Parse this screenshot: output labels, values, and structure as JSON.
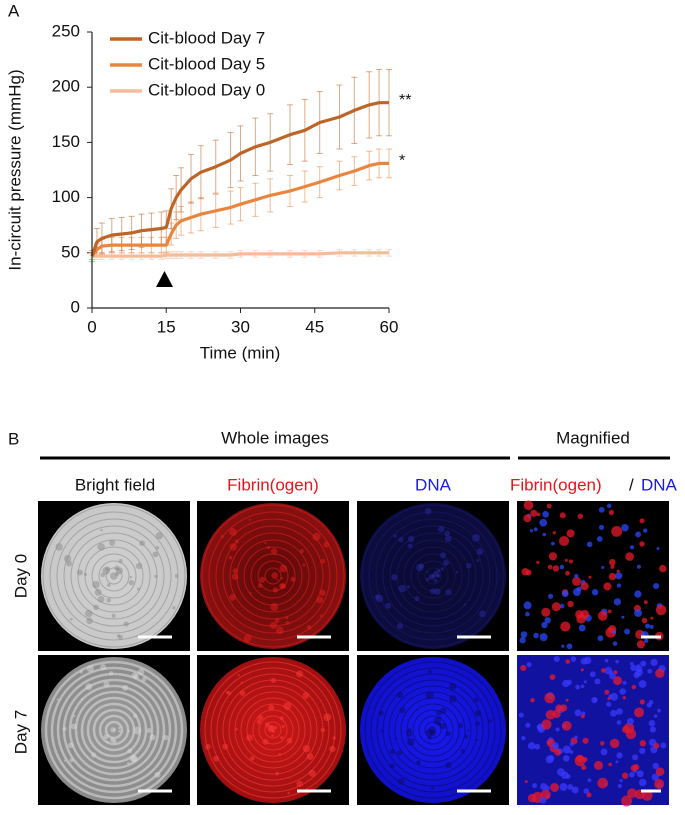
{
  "chart_data": {
    "type": "line",
    "panel_label": "A",
    "x_label": "Time (min)",
    "y_label": "In-circuit pressure (mmHg)",
    "x": [
      0,
      1,
      2,
      4,
      6,
      8,
      10,
      12,
      14,
      15,
      16,
      17,
      18,
      20,
      22,
      25,
      28,
      30,
      33,
      36,
      40,
      43,
      46,
      50,
      53,
      56,
      58,
      60
    ],
    "series": [
      {
        "name": "Cit-blood Day 7",
        "color": "#bd6428",
        "values": [
          47,
          60,
          63,
          66,
          67,
          68,
          70,
          71,
          72,
          73,
          90,
          100,
          107,
          117,
          123,
          128,
          134,
          140,
          146,
          150,
          157,
          161,
          168,
          173,
          179,
          184,
          186,
          186
        ],
        "errors": [
          5,
          12,
          14,
          15,
          15,
          15,
          15,
          15,
          15,
          15,
          18,
          20,
          20,
          22,
          24,
          24,
          25,
          25,
          26,
          26,
          27,
          28,
          28,
          29,
          30,
          30,
          30,
          30
        ]
      },
      {
        "name": "Cit-blood Day 5",
        "color": "#e9853f",
        "values": [
          47,
          53,
          56,
          57,
          57,
          57,
          57,
          57,
          57,
          57,
          67,
          75,
          79,
          82,
          85,
          88,
          91,
          94,
          98,
          102,
          106,
          110,
          114,
          120,
          124,
          129,
          131,
          131
        ],
        "errors": [
          3,
          5,
          6,
          7,
          7,
          7,
          7,
          7,
          7,
          7,
          10,
          12,
          13,
          14,
          15,
          15,
          15,
          15,
          15,
          15,
          14,
          14,
          14,
          13,
          13,
          13,
          13,
          13
        ]
      },
      {
        "name": "Cit-blood Day 0",
        "color": "#f5bb9a",
        "values": [
          47,
          47,
          47,
          47,
          47,
          47,
          47,
          47,
          47,
          48,
          48,
          48,
          48,
          48,
          48,
          48,
          48,
          49,
          49,
          49,
          49,
          49,
          49,
          50,
          50,
          50,
          50,
          50
        ],
        "errors": [
          3,
          3,
          3,
          3,
          3,
          3,
          3,
          3,
          3,
          3,
          3,
          3,
          3,
          3,
          3,
          3,
          3,
          3,
          3,
          3,
          3,
          3,
          3,
          3,
          3,
          3,
          3,
          3
        ]
      }
    ],
    "annotations": [
      "**",
      "*"
    ],
    "xlim": [
      0,
      60
    ],
    "ylim": [
      0,
      250
    ],
    "xticks": [
      0,
      15,
      30,
      45,
      60
    ],
    "yticks": [
      0,
      50,
      100,
      150,
      200,
      250
    ],
    "grid": false,
    "legend": "upper left"
  },
  "panel_b": {
    "panel_label": "B",
    "groups": [
      "Whole images",
      "Magnified"
    ],
    "columns": [
      "Bright field",
      "Fibrin(ogen)",
      "DNA"
    ],
    "magnified_label": {
      "red": "Fibrin(ogen)",
      "separator": "/",
      "blue": "DNA"
    },
    "rows": [
      "Day 0",
      "Day 7"
    ]
  }
}
